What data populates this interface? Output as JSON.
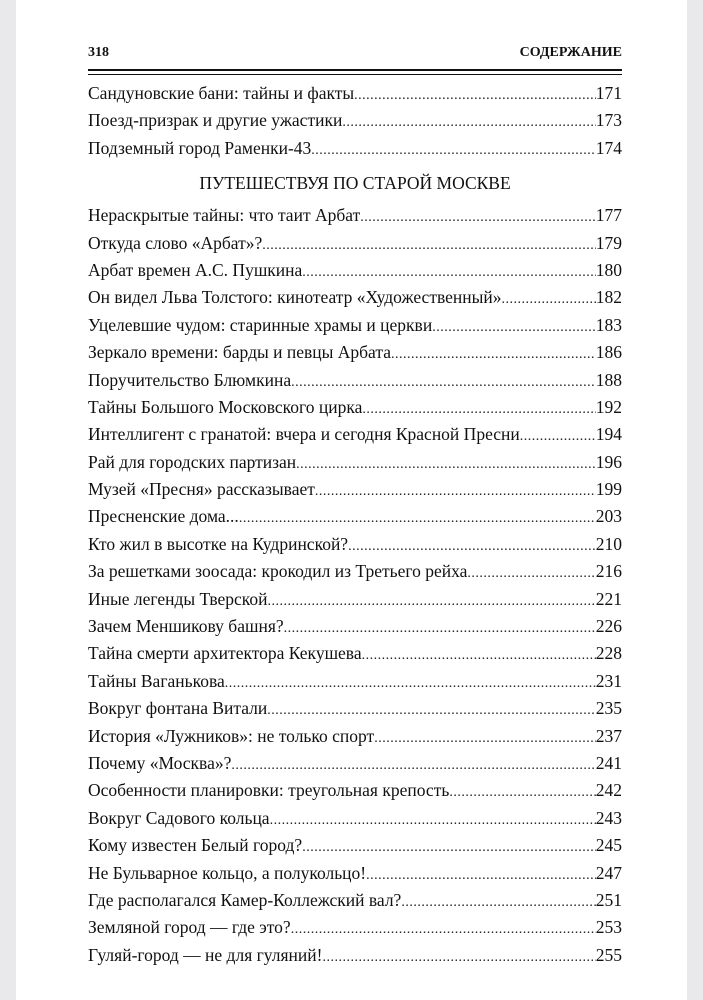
{
  "header": {
    "page_number": "318",
    "running_title": "СОДЕРЖАНИЕ"
  },
  "entries_before": [
    {
      "title": "Сандуновские бани: тайны и факты",
      "page": "171"
    },
    {
      "title": "Поезд-призрак и другие ужастики",
      "page": "173"
    },
    {
      "title": "Подземный город Раменки-43",
      "page": "174"
    }
  ],
  "section_title": "ПУТЕШЕСТВУЯ ПО СТАРОЙ МОСКВЕ",
  "entries": [
    {
      "title": "Нераскрытые тайны: что таит Арбат",
      "page": "177"
    },
    {
      "title": "Откуда слово «Арбат»?",
      "page": "179"
    },
    {
      "title": "Арбат времен А.С. Пушкина",
      "page": "180"
    },
    {
      "title": "Он видел Льва Толстого: кинотеатр «Художественный»",
      "page": "182"
    },
    {
      "title": "Уцелевшие чудом: старинные храмы и церкви",
      "page": "183"
    },
    {
      "title": "Зеркало времени: барды и певцы Арбата",
      "page": "186"
    },
    {
      "title": "Поручительство Блюмкина",
      "page": "188"
    },
    {
      "title": "Тайны Большого Московского цирка",
      "page": "192"
    },
    {
      "title": "Интеллигент с гранатой: вчера и сегодня Красной Пресни",
      "page": "194"
    },
    {
      "title": "Рай для городских партизан",
      "page": "196"
    },
    {
      "title": "Музей «Пресня» рассказывает",
      "page": "199"
    },
    {
      "title": "Пресненские дома...",
      "page": "203"
    },
    {
      "title": "Кто жил в высотке на Кудринской?",
      "page": "210"
    },
    {
      "title": "За решетками зоосада: крокодил из Третьего рейха",
      "page": "216"
    },
    {
      "title": "Иные легенды Тверской",
      "page": "221"
    },
    {
      "title": "Зачем Меншикову башня?",
      "page": "226"
    },
    {
      "title": "Тайна смерти архитектора Кекушева",
      "page": "228"
    },
    {
      "title": "Тайны Ваганькова",
      "page": "231"
    },
    {
      "title": "Вокруг фонтана Витали",
      "page": "235"
    },
    {
      "title": "История «Лужников»: не только спорт",
      "page": "237"
    },
    {
      "title": "Почему «Москва»?",
      "page": "241"
    },
    {
      "title": "Особенности планировки: треугольная крепость",
      "page": "242"
    },
    {
      "title": "Вокруг Садового кольца",
      "page": "243"
    },
    {
      "title": "Кому известен Белый город?",
      "page": "245"
    },
    {
      "title": "Не Бульварное кольцо, а полукольцо!",
      "page": "247"
    },
    {
      "title": "Где располагался Камер-Коллежский вал?",
      "page": "251"
    },
    {
      "title": "Земляной город — где это?",
      "page": "253"
    },
    {
      "title": "Гуляй-город — не для гуляний!",
      "page": "255"
    }
  ]
}
